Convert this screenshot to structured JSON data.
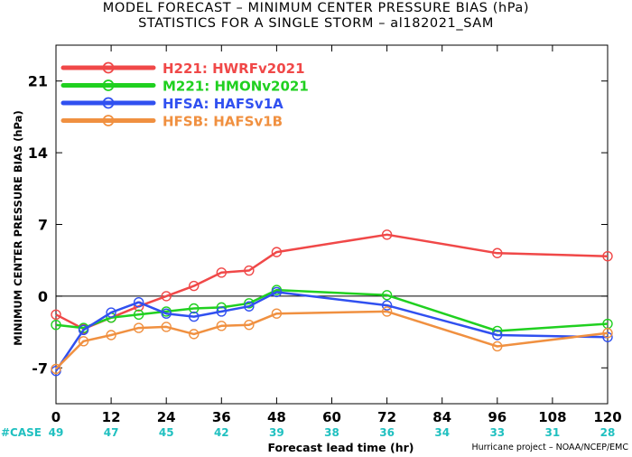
{
  "chart_data": {
    "type": "line",
    "title": "MODEL FORECAST – MINIMUM CENTER PRESSURE BIAS (hPa)",
    "subtitle": "STATISTICS FOR A SINGLE STORM – al182021_SAM",
    "xlabel": "Forecast lead time (hr)",
    "ylabel": "MINIMUM CENTER PRESSURE BIAS (hPa)",
    "xlim": [
      0,
      120
    ],
    "ylim": [
      -10.5,
      24.5
    ],
    "x_ticks": [
      0,
      12,
      24,
      36,
      48,
      60,
      72,
      84,
      96,
      108,
      120
    ],
    "y_ticks": [
      -7,
      0,
      7,
      14,
      21
    ],
    "zero_line": true,
    "legend_position": "top-left",
    "case_label": "#CASE",
    "case_counts": [
      49,
      47,
      45,
      42,
      39,
      38,
      36,
      34,
      33,
      31,
      28
    ],
    "case_color": "#20c0c0",
    "series": [
      {
        "name": "H221: HWRFv2021",
        "color": "#f04848",
        "x": [
          0,
          6,
          12,
          18,
          24,
          30,
          36,
          42,
          48,
          72,
          96,
          120
        ],
        "y": [
          -1.8,
          -3.2,
          -2.1,
          -1.0,
          0.0,
          1.0,
          2.3,
          2.5,
          4.3,
          6.0,
          4.2,
          3.9
        ]
      },
      {
        "name": "M221: HMONv2021",
        "color": "#20d020",
        "x": [
          0,
          6,
          12,
          18,
          24,
          30,
          36,
          42,
          48,
          72,
          96,
          120
        ],
        "y": [
          -2.8,
          -3.1,
          -2.1,
          -1.8,
          -1.5,
          -1.2,
          -1.1,
          -0.7,
          0.6,
          0.1,
          -3.4,
          -2.7
        ]
      },
      {
        "name": "HFSA: HAFSv1A",
        "color": "#3050f0",
        "x": [
          0,
          6,
          12,
          18,
          24,
          30,
          36,
          42,
          48,
          72,
          96,
          120
        ],
        "y": [
          -7.3,
          -3.3,
          -1.6,
          -0.6,
          -1.7,
          -2.0,
          -1.5,
          -1.0,
          0.4,
          -0.9,
          -3.8,
          -4.0
        ]
      },
      {
        "name": "HFSB: HAFSv1B",
        "color": "#f09040",
        "x": [
          0,
          6,
          12,
          18,
          24,
          30,
          36,
          42,
          48,
          72,
          96,
          120
        ],
        "y": [
          -7.1,
          -4.4,
          -3.8,
          -3.1,
          -3.0,
          -3.7,
          -2.9,
          -2.8,
          -1.7,
          -1.5,
          -4.9,
          -3.6
        ]
      }
    ]
  },
  "credit": "Hurricane project – NOAA/NCEP/EMC"
}
